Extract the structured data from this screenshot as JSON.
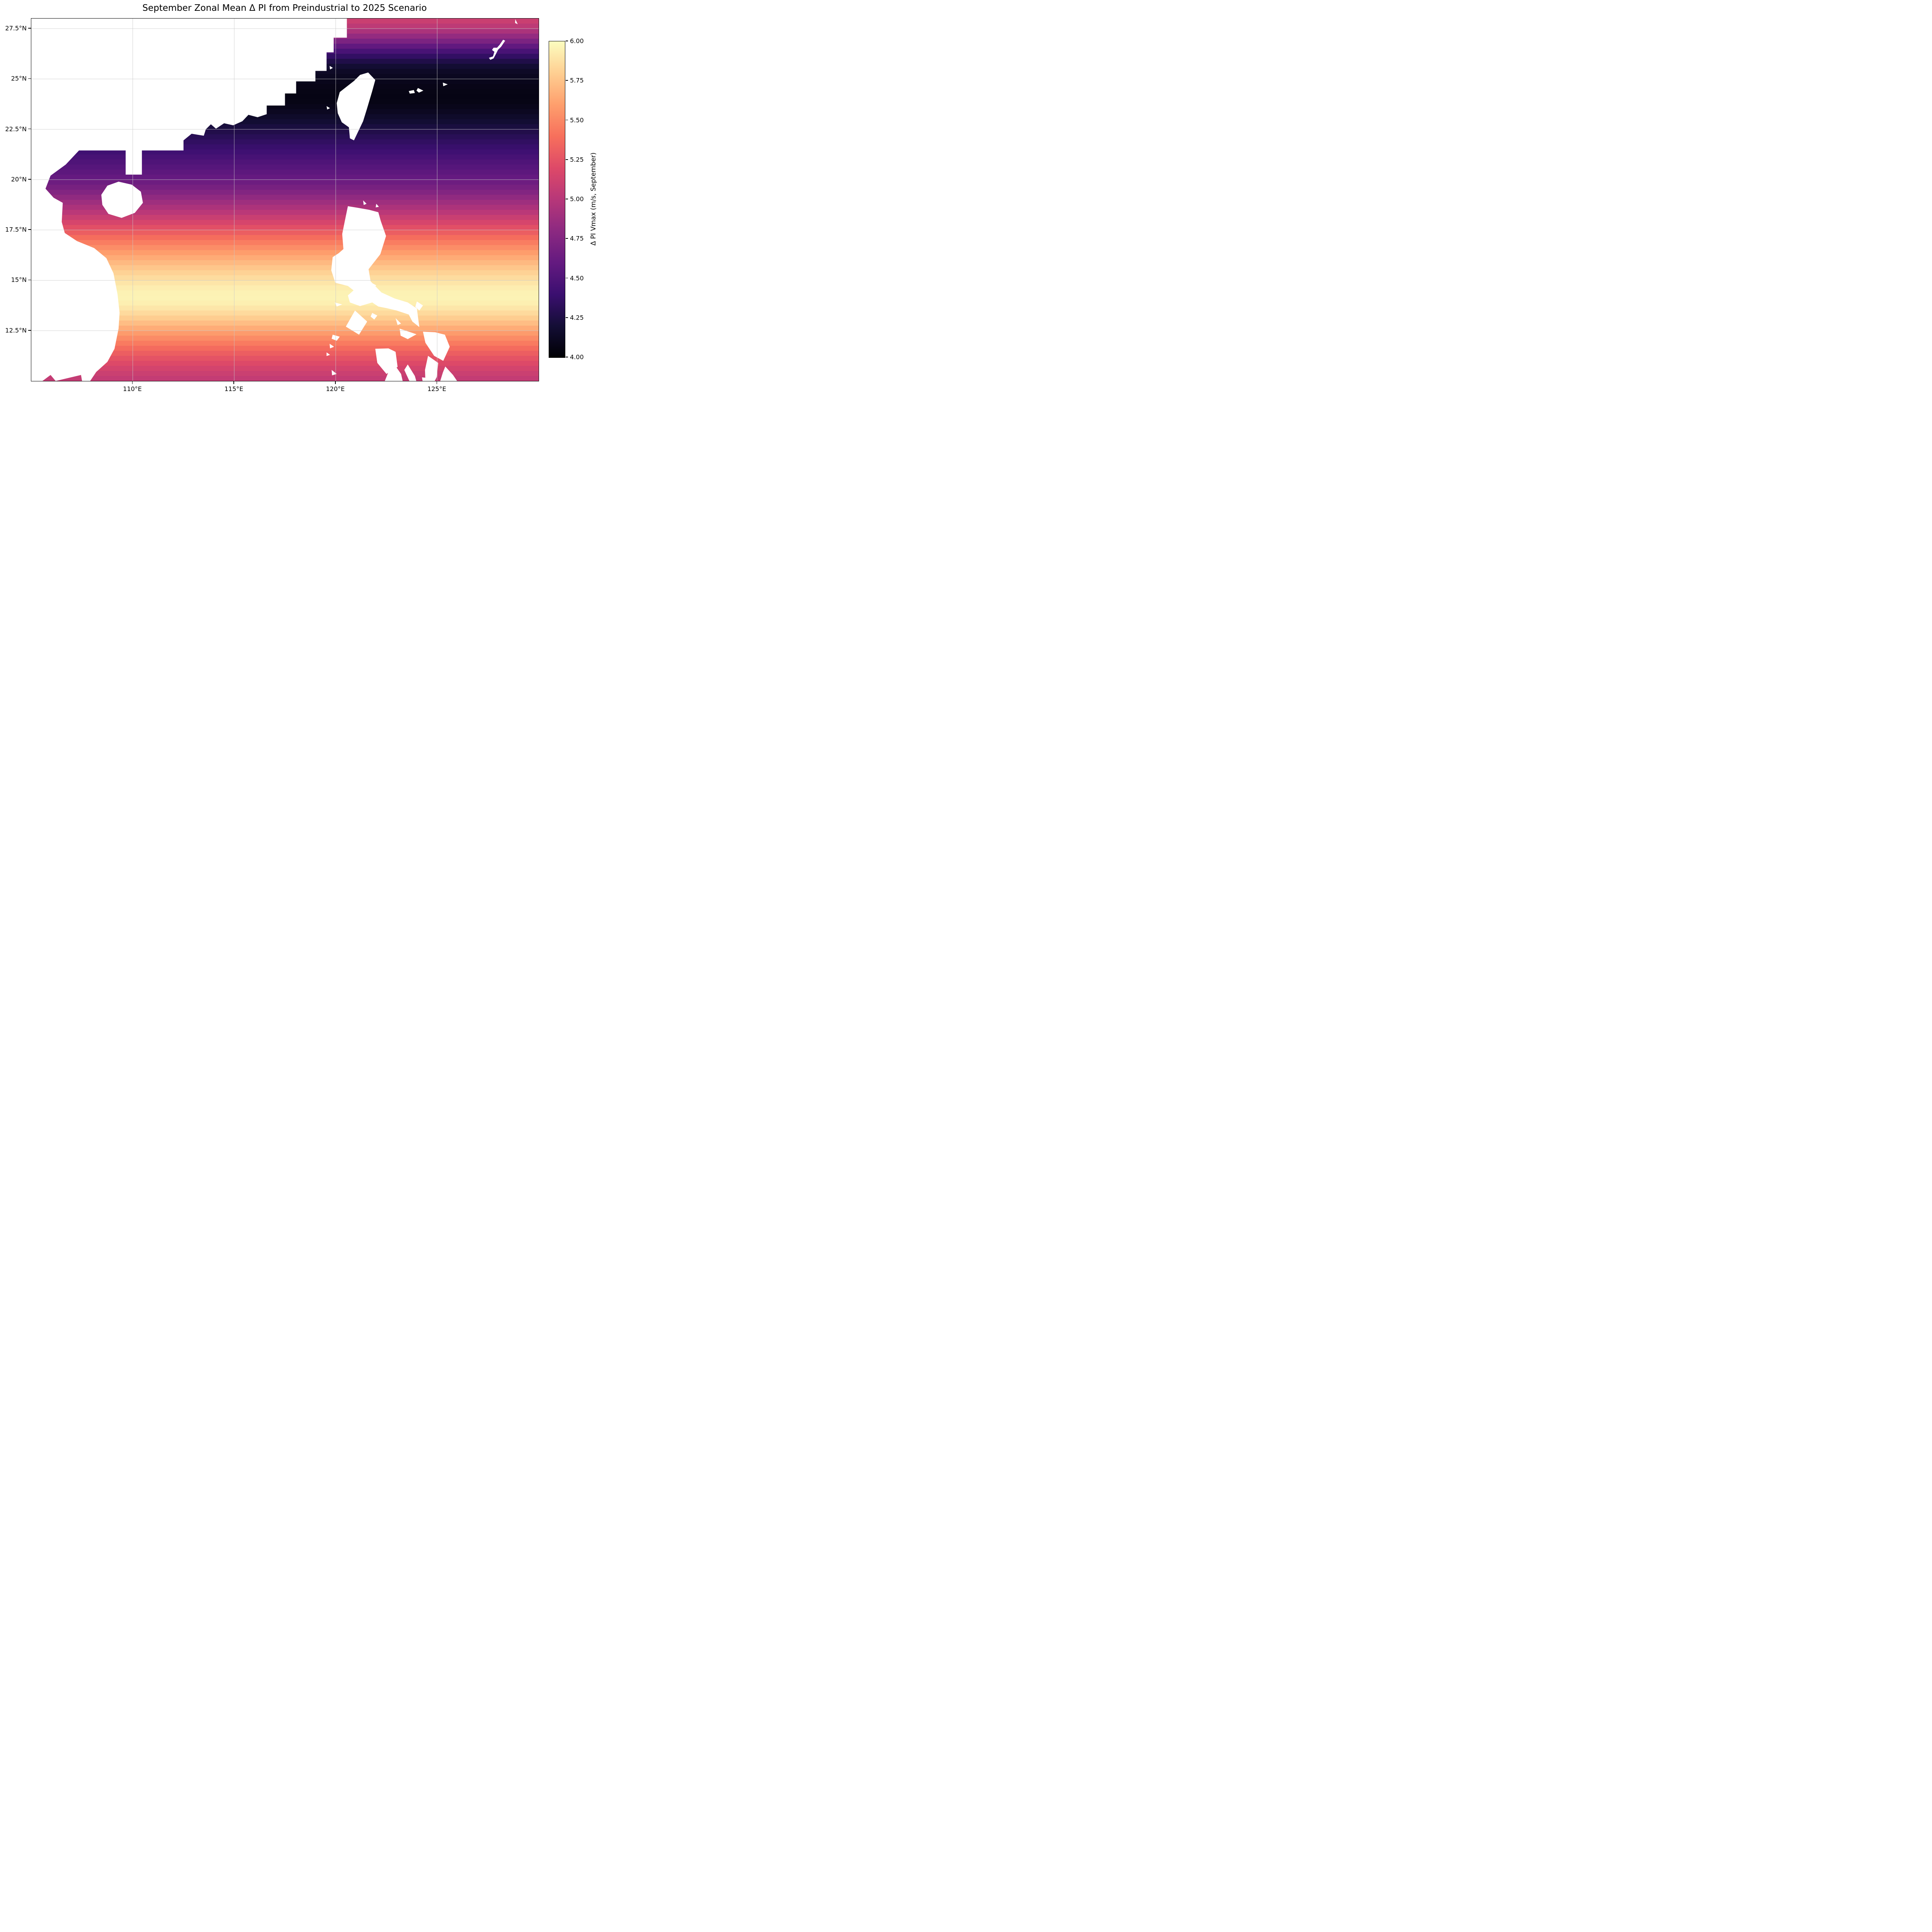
{
  "title": "September Zonal Mean Δ PI from Preindustrial to 2025 Scenario",
  "axes": {
    "x_ticks": [
      {
        "lon": 110,
        "label": "110°E"
      },
      {
        "lon": 115,
        "label": "115°E"
      },
      {
        "lon": 120,
        "label": "120°E"
      },
      {
        "lon": 125,
        "label": "125°E"
      }
    ],
    "y_ticks": [
      {
        "lat": 27.5,
        "label": "27.5°N"
      },
      {
        "lat": 25,
        "label": "25°N"
      },
      {
        "lat": 22.5,
        "label": "22.5°N"
      },
      {
        "lat": 20,
        "label": "20°N"
      },
      {
        "lat": 17.5,
        "label": "17.5°N"
      },
      {
        "lat": 15,
        "label": "15°N"
      },
      {
        "lat": 12.5,
        "label": "12.5°N"
      }
    ]
  },
  "colorbar": {
    "label": "Δ PI Vmax (m/s, September)",
    "vmin": 4.0,
    "vmax": 6.0,
    "colormap": "magma",
    "ticks": [
      {
        "value": 6.0,
        "label": "6.00"
      },
      {
        "value": 5.75,
        "label": "5.75"
      },
      {
        "value": 5.5,
        "label": "5.50"
      },
      {
        "value": 5.25,
        "label": "5.25"
      },
      {
        "value": 5.0,
        "label": "5.00"
      },
      {
        "value": 4.75,
        "label": "4.75"
      },
      {
        "value": 4.5,
        "label": "4.50"
      },
      {
        "value": 4.25,
        "label": "4.25"
      },
      {
        "value": 4.0,
        "label": "4.00"
      }
    ]
  },
  "chart_data": {
    "type": "heatmap",
    "title": "September Zonal Mean Δ PI from Preindustrial to 2025 Scenario",
    "xlabel": "",
    "ylabel": "",
    "value_label": "Δ PI Vmax (m/s, September)",
    "lon_range": [
      105,
      130
    ],
    "lat_range": [
      10,
      28
    ],
    "vmin": 4.0,
    "vmax": 6.0,
    "grid": true,
    "resolution_deg": 0.25,
    "zonal_profile": {
      "lat": [
        28,
        27.5,
        27,
        26.5,
        26,
        25.5,
        25,
        24.5,
        24,
        23.5,
        23,
        22.5,
        22,
        21.5,
        21,
        20.5,
        20,
        19.5,
        19,
        18.5,
        18,
        17.5,
        17,
        16.5,
        16,
        15.5,
        15,
        14.5,
        14,
        13.5,
        13,
        12.5,
        12,
        11.5,
        11,
        10.5,
        10
      ],
      "delta_pi_ms": [
        5.12,
        5.0,
        4.78,
        4.52,
        4.3,
        4.15,
        4.1,
        4.07,
        4.06,
        4.1,
        4.17,
        4.25,
        4.33,
        4.4,
        4.48,
        4.55,
        4.62,
        4.72,
        4.85,
        4.98,
        5.12,
        5.27,
        5.42,
        5.56,
        5.68,
        5.79,
        5.88,
        5.95,
        5.96,
        5.88,
        5.76,
        5.62,
        5.48,
        5.34,
        5.22,
        5.12,
        5.04
      ]
    },
    "land_mask_polygons": {
      "china_vietnam": [
        [
          105,
          28
        ],
        [
          120.55,
          28
        ],
        [
          120.55,
          27.05
        ],
        [
          119.9,
          27.05
        ],
        [
          119.9,
          26.32
        ],
        [
          119.55,
          26.32
        ],
        [
          119.55,
          25.4
        ],
        [
          119.0,
          25.4
        ],
        [
          119.0,
          24.88
        ],
        [
          118.05,
          24.88
        ],
        [
          118.05,
          24.28
        ],
        [
          117.5,
          24.28
        ],
        [
          117.5,
          23.68
        ],
        [
          116.6,
          23.68
        ],
        [
          116.6,
          23.25
        ],
        [
          116.15,
          23.1
        ],
        [
          115.7,
          23.22
        ],
        [
          115.4,
          22.9
        ],
        [
          114.95,
          22.7
        ],
        [
          114.5,
          22.8
        ],
        [
          114.1,
          22.53
        ],
        [
          113.85,
          22.75
        ],
        [
          113.6,
          22.5
        ],
        [
          113.5,
          22.18
        ],
        [
          112.9,
          22.28
        ],
        [
          112.5,
          21.95
        ],
        [
          112.5,
          21.45
        ],
        [
          110.45,
          21.45
        ],
        [
          110.45,
          20.25
        ],
        [
          109.65,
          20.25
        ],
        [
          109.65,
          21.45
        ],
        [
          107.35,
          21.45
        ],
        [
          106.7,
          20.75
        ],
        [
          105.95,
          20.2
        ],
        [
          105.7,
          19.55
        ],
        [
          106.1,
          19.1
        ],
        [
          106.55,
          18.85
        ],
        [
          106.5,
          17.9
        ],
        [
          106.65,
          17.35
        ],
        [
          107.25,
          16.95
        ],
        [
          108.1,
          16.6
        ],
        [
          108.7,
          16.1
        ],
        [
          109.05,
          15.35
        ],
        [
          109.25,
          14.3
        ],
        [
          109.35,
          13.4
        ],
        [
          109.3,
          12.6
        ],
        [
          109.1,
          11.6
        ],
        [
          108.75,
          10.95
        ],
        [
          108.2,
          10.45
        ],
        [
          107.9,
          10.0
        ],
        [
          107.5,
          10.0
        ],
        [
          107.45,
          10.3
        ],
        [
          106.2,
          10.0
        ],
        [
          105.95,
          10.3
        ],
        [
          105.55,
          10.0
        ],
        [
          105,
          10.0
        ]
      ],
      "hainan": [
        [
          108.45,
          19.25
        ],
        [
          108.75,
          19.7
        ],
        [
          109.3,
          19.9
        ],
        [
          109.95,
          19.75
        ],
        [
          110.4,
          19.4
        ],
        [
          110.5,
          18.85
        ],
        [
          110.1,
          18.35
        ],
        [
          109.45,
          18.1
        ],
        [
          108.8,
          18.3
        ],
        [
          108.5,
          18.75
        ]
      ],
      "taiwan": [
        [
          121.6,
          25.32
        ],
        [
          121.95,
          24.95
        ],
        [
          121.8,
          24.4
        ],
        [
          121.55,
          23.55
        ],
        [
          121.35,
          22.9
        ],
        [
          120.9,
          21.95
        ],
        [
          120.7,
          22.05
        ],
        [
          120.65,
          22.6
        ],
        [
          120.3,
          22.85
        ],
        [
          120.1,
          23.3
        ],
        [
          120.05,
          23.8
        ],
        [
          120.2,
          24.35
        ],
        [
          120.9,
          24.9
        ],
        [
          121.2,
          25.2
        ]
      ],
      "okinawa": [
        [
          127.55,
          26.05
        ],
        [
          127.75,
          26.12
        ],
        [
          127.82,
          26.35
        ],
        [
          127.7,
          26.44
        ],
        [
          127.78,
          26.55
        ],
        [
          127.95,
          26.55
        ],
        [
          128.08,
          26.7
        ],
        [
          128.25,
          26.95
        ],
        [
          128.35,
          26.9
        ],
        [
          128.15,
          26.6
        ],
        [
          128.0,
          26.45
        ],
        [
          127.9,
          26.25
        ],
        [
          127.78,
          26.02
        ],
        [
          127.62,
          25.95
        ]
      ],
      "amami": [
        [
          128.85,
          27.97
        ],
        [
          128.97,
          27.72
        ],
        [
          128.84,
          27.78
        ]
      ],
      "miyako": [
        [
          125.28,
          24.82
        ],
        [
          125.52,
          24.73
        ],
        [
          125.3,
          24.64
        ]
      ],
      "ishigaki": [
        [
          123.6,
          24.4
        ],
        [
          123.85,
          24.45
        ],
        [
          123.9,
          24.3
        ],
        [
          123.65,
          24.27
        ]
      ],
      "iriomote": [
        [
          124.05,
          24.55
        ],
        [
          124.32,
          24.42
        ],
        [
          124.1,
          24.32
        ],
        [
          123.98,
          24.42
        ]
      ],
      "matsu": [
        [
          119.7,
          25.65
        ],
        [
          119.86,
          25.55
        ],
        [
          119.72,
          25.47
        ]
      ],
      "penghu": [
        [
          119.55,
          23.65
        ],
        [
          119.72,
          23.55
        ],
        [
          119.58,
          23.48
        ]
      ],
      "babuyan_1": [
        [
          121.35,
          18.97
        ],
        [
          121.52,
          18.8
        ],
        [
          121.38,
          18.74
        ]
      ],
      "babuyan_2": [
        [
          122.0,
          18.8
        ],
        [
          122.13,
          18.65
        ],
        [
          121.97,
          18.62
        ]
      ],
      "luzon": [
        [
          120.6,
          18.68
        ],
        [
          121.1,
          18.6
        ],
        [
          121.65,
          18.5
        ],
        [
          122.1,
          18.38
        ],
        [
          122.22,
          17.95
        ],
        [
          122.48,
          17.2
        ],
        [
          122.2,
          16.3
        ],
        [
          121.62,
          15.55
        ],
        [
          121.72,
          14.95
        ],
        [
          122.25,
          14.4
        ],
        [
          122.9,
          14.1
        ],
        [
          123.55,
          13.9
        ],
        [
          124.0,
          13.6
        ],
        [
          124.12,
          12.68
        ],
        [
          123.78,
          12.95
        ],
        [
          123.6,
          13.3
        ],
        [
          123.0,
          13.5
        ],
        [
          122.5,
          13.62
        ],
        [
          122.1,
          13.7
        ],
        [
          121.8,
          13.9
        ],
        [
          121.2,
          13.72
        ],
        [
          120.7,
          13.9
        ],
        [
          120.6,
          14.25
        ],
        [
          120.88,
          14.5
        ],
        [
          120.6,
          14.72
        ],
        [
          119.98,
          14.88
        ],
        [
          119.78,
          15.5
        ],
        [
          119.85,
          16.15
        ],
        [
          120.15,
          16.35
        ],
        [
          120.38,
          16.55
        ],
        [
          120.32,
          17.3
        ],
        [
          120.45,
          17.95
        ]
      ],
      "lubang": [
        [
          119.95,
          13.9
        ],
        [
          120.32,
          13.8
        ],
        [
          120.05,
          13.7
        ]
      ],
      "polillo": [
        [
          121.78,
          14.87
        ],
        [
          122.0,
          14.75
        ],
        [
          121.82,
          14.6
        ]
      ],
      "mindoro": [
        [
          120.95,
          13.5
        ],
        [
          121.55,
          12.95
        ],
        [
          121.15,
          12.3
        ],
        [
          120.5,
          12.7
        ]
      ],
      "marinduque": [
        [
          121.8,
          13.38
        ],
        [
          122.05,
          13.25
        ],
        [
          121.9,
          13.05
        ],
        [
          121.72,
          13.2
        ]
      ],
      "catanduanes": [
        [
          124.0,
          13.95
        ],
        [
          124.3,
          13.75
        ],
        [
          124.12,
          13.5
        ],
        [
          123.92,
          13.68
        ]
      ],
      "burias": [
        [
          122.95,
          13.12
        ],
        [
          123.22,
          12.85
        ],
        [
          123.05,
          12.78
        ]
      ],
      "masbate": [
        [
          123.15,
          12.6
        ],
        [
          123.6,
          12.45
        ],
        [
          123.98,
          12.32
        ],
        [
          123.55,
          12.08
        ],
        [
          123.2,
          12.25
        ]
      ],
      "samar": [
        [
          124.3,
          12.45
        ],
        [
          124.9,
          12.42
        ],
        [
          125.38,
          12.3
        ],
        [
          125.62,
          11.7
        ],
        [
          125.3,
          11.0
        ],
        [
          124.85,
          11.25
        ],
        [
          124.42,
          11.9
        ]
      ],
      "leyte": [
        [
          124.55,
          11.25
        ],
        [
          125.05,
          10.9
        ],
        [
          124.98,
          10.2
        ],
        [
          124.88,
          10.0
        ],
        [
          124.42,
          10.0
        ],
        [
          124.4,
          10.55
        ]
      ],
      "panay": [
        [
          121.95,
          11.6
        ],
        [
          122.6,
          11.62
        ],
        [
          122.95,
          11.45
        ],
        [
          123.05,
          10.7
        ],
        [
          122.5,
          10.35
        ],
        [
          122.05,
          10.9
        ]
      ],
      "negros": [
        [
          122.85,
          10.88
        ],
        [
          123.22,
          10.35
        ],
        [
          123.3,
          10.0
        ],
        [
          122.42,
          10.0
        ],
        [
          122.6,
          10.45
        ]
      ],
      "cebu": [
        [
          123.55,
          10.82
        ],
        [
          123.9,
          10.25
        ],
        [
          123.97,
          10.0
        ],
        [
          123.63,
          10.0
        ],
        [
          123.38,
          10.55
        ]
      ],
      "bohol": [
        [
          124.25,
          10.18
        ],
        [
          124.85,
          10.12
        ],
        [
          124.8,
          10.0
        ],
        [
          124.28,
          10.0
        ]
      ],
      "mindanao_ne": [
        [
          125.4,
          10.72
        ],
        [
          125.78,
          10.3
        ],
        [
          125.98,
          10.0
        ],
        [
          125.15,
          10.0
        ],
        [
          125.28,
          10.42
        ]
      ],
      "busuanga": [
        [
          119.85,
          12.3
        ],
        [
          120.2,
          12.2
        ],
        [
          120.05,
          12.0
        ],
        [
          119.8,
          12.1
        ]
      ],
      "culion": [
        [
          119.7,
          11.85
        ],
        [
          119.92,
          11.7
        ],
        [
          119.72,
          11.62
        ]
      ],
      "linapacan": [
        [
          119.55,
          11.42
        ],
        [
          119.72,
          11.3
        ],
        [
          119.55,
          11.24
        ]
      ],
      "palawan_n": [
        [
          119.8,
          10.55
        ],
        [
          120.05,
          10.35
        ],
        [
          119.82,
          10.28
        ]
      ]
    }
  }
}
